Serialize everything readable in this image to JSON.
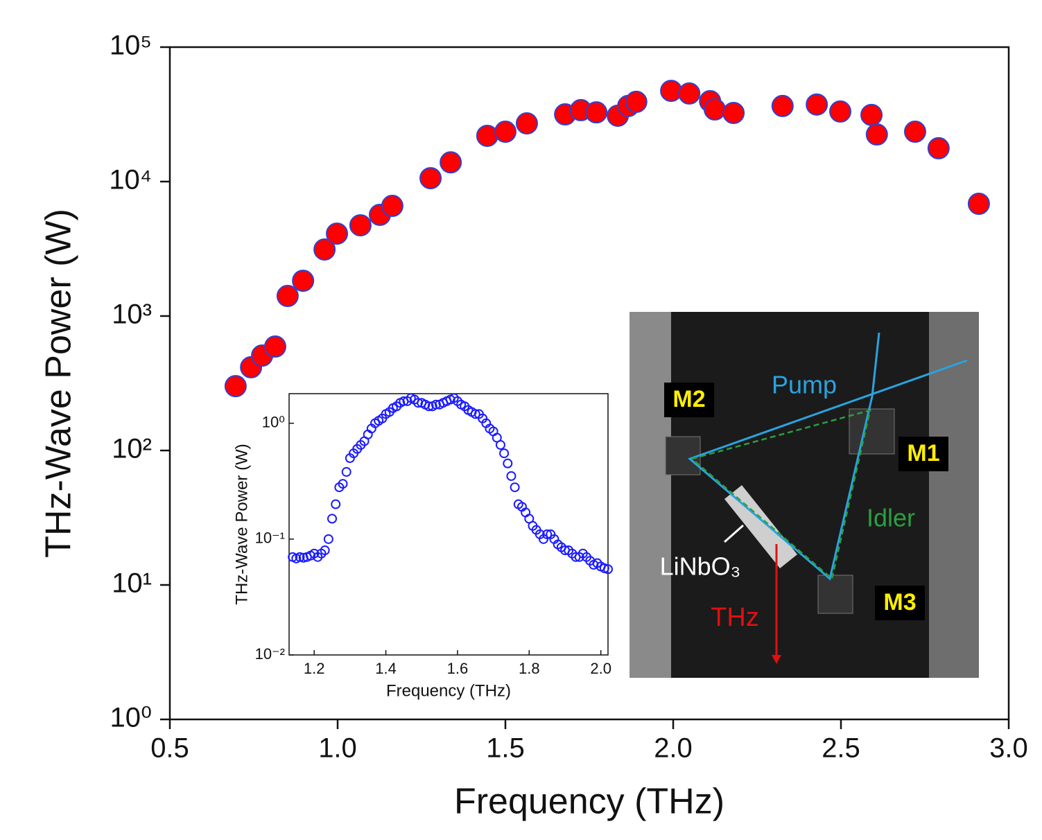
{
  "chart_data": [
    {
      "type": "scatter",
      "x_label": "Frequency (THz)",
      "y_label": "THz-Wave Power (W)",
      "log_y": true,
      "marker_fill": "#ff0000",
      "marker_edge": "#3340d0",
      "xlim": [
        0.5,
        3.0
      ],
      "ylim": [
        1,
        100000
      ],
      "xticks": [
        0.5,
        {
          "value": 1,
          "label": "1.0"
        },
        1.5,
        {
          "value": 2,
          "label": "2.0"
        },
        2.5,
        {
          "value": 3,
          "label": "3.0"
        }
      ],
      "yticks": [
        {
          "value": 1,
          "label": "10⁰"
        },
        {
          "value": 10,
          "label": "10¹"
        },
        {
          "value": 100,
          "label": "10²"
        },
        {
          "value": 1000,
          "label": "10³"
        },
        {
          "value": 10000,
          "label": "10⁴"
        },
        {
          "value": 100000,
          "label": "10⁵"
        }
      ],
      "x": [
        0.696,
        0.742,
        0.775,
        0.814,
        0.851,
        0.897,
        0.961,
        0.998,
        1.068,
        1.126,
        1.163,
        1.277,
        1.337,
        1.446,
        1.5,
        1.564,
        1.678,
        1.725,
        1.771,
        1.835,
        1.866,
        1.89,
        1.994,
        2.048,
        2.11,
        2.124,
        2.18,
        2.326,
        2.428,
        2.498,
        2.591,
        2.607,
        2.721,
        2.791,
        2.911
      ],
      "values": [
        301,
        416,
        508,
        593,
        1410,
        1830,
        3126,
        4100,
        4730,
        5660,
        6600,
        10600,
        13900,
        21900,
        23500,
        27100,
        31600,
        34000,
        32700,
        30900,
        36500,
        39200,
        47300,
        45200,
        39600,
        34400,
        32400,
        36500,
        37400,
        33200,
        31300,
        22400,
        23500,
        17700,
        6840
      ]
    },
    {
      "type": "scatter",
      "x_label": "Frequency (THz)",
      "y_label": "THz-Wave Power (W)",
      "log_y": true,
      "marker_fill": "none",
      "marker_edge": "#1a1aff",
      "xlim": [
        1.13,
        2.02
      ],
      "ylim": [
        0.01,
        1.8
      ],
      "xticks": [
        1.2,
        1.4,
        1.6,
        1.8,
        {
          "value": 2,
          "label": "2.0"
        }
      ],
      "yticks": [
        {
          "value": 0.01,
          "label": "10⁻²"
        },
        {
          "value": 0.1,
          "label": "10⁻¹"
        },
        {
          "value": 1,
          "label": "10⁰"
        }
      ],
      "x": [
        1.14,
        1.15,
        1.16,
        1.17,
        1.18,
        1.19,
        1.2,
        1.21,
        1.22,
        1.23,
        1.24,
        1.25,
        1.26,
        1.27,
        1.28,
        1.29,
        1.3,
        1.31,
        1.32,
        1.33,
        1.34,
        1.35,
        1.36,
        1.37,
        1.38,
        1.39,
        1.4,
        1.41,
        1.42,
        1.43,
        1.44,
        1.45,
        1.46,
        1.47,
        1.48,
        1.49,
        1.5,
        1.51,
        1.52,
        1.53,
        1.54,
        1.55,
        1.56,
        1.57,
        1.58,
        1.59,
        1.6,
        1.61,
        1.62,
        1.63,
        1.64,
        1.65,
        1.66,
        1.67,
        1.68,
        1.69,
        1.7,
        1.71,
        1.72,
        1.73,
        1.74,
        1.75,
        1.76,
        1.77,
        1.78,
        1.79,
        1.8,
        1.81,
        1.82,
        1.83,
        1.84,
        1.85,
        1.86,
        1.87,
        1.88,
        1.89,
        1.9,
        1.91,
        1.92,
        1.93,
        1.94,
        1.95,
        1.96,
        1.97,
        1.98,
        1.99,
        2.0,
        2.01,
        2.02
      ],
      "values": [
        0.07,
        0.068,
        0.07,
        0.069,
        0.07,
        0.072,
        0.075,
        0.07,
        0.075,
        0.08,
        0.1,
        0.15,
        0.2,
        0.28,
        0.3,
        0.38,
        0.5,
        0.55,
        0.6,
        0.65,
        0.7,
        0.8,
        0.9,
        1.0,
        1.05,
        1.1,
        1.2,
        1.25,
        1.35,
        1.4,
        1.5,
        1.55,
        1.55,
        1.65,
        1.6,
        1.5,
        1.5,
        1.45,
        1.4,
        1.4,
        1.45,
        1.45,
        1.5,
        1.55,
        1.6,
        1.65,
        1.55,
        1.45,
        1.4,
        1.3,
        1.25,
        1.2,
        1.2,
        1.1,
        1.0,
        0.9,
        0.85,
        0.75,
        0.65,
        0.55,
        0.45,
        0.35,
        0.28,
        0.2,
        0.19,
        0.17,
        0.15,
        0.13,
        0.12,
        0.11,
        0.1,
        0.11,
        0.11,
        0.1,
        0.09,
        0.085,
        0.08,
        0.08,
        0.075,
        0.07,
        0.07,
        0.075,
        0.07,
        0.065,
        0.06,
        0.062,
        0.058,
        0.056,
        0.055
      ]
    }
  ],
  "photo_labels": [
    "M2",
    "M1",
    "M3",
    "Pump",
    "Idler",
    "LiNbO₃",
    "THz"
  ]
}
